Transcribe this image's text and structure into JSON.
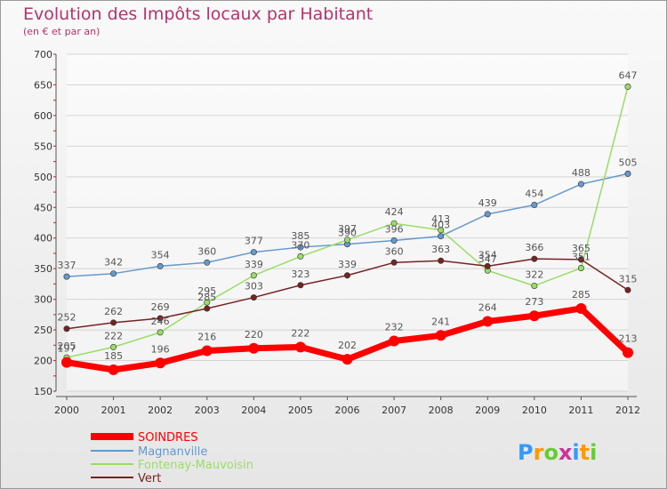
{
  "chart_data": {
    "type": "line",
    "title": "Evolution des Impôts locaux par Habitant",
    "subtitle": "(en € et par an)",
    "x": [
      "2000",
      "2001",
      "2002",
      "2003",
      "2004",
      "2005",
      "2006",
      "2007",
      "2008",
      "2009",
      "2010",
      "2011",
      "2012"
    ],
    "ylim": [
      150,
      700
    ],
    "yticks": [
      150,
      200,
      250,
      300,
      350,
      400,
      450,
      500,
      550,
      600,
      650,
      700
    ],
    "grid": "horizontal",
    "legend_position": "bottom-left",
    "series": [
      {
        "name": "SOINDRES",
        "color": "#ff0000",
        "values": [
          197,
          185,
          196,
          216,
          220,
          222,
          202,
          232,
          241,
          264,
          273,
          285,
          213
        ]
      },
      {
        "name": "Magnanville",
        "color": "#6699cc",
        "values": [
          337,
          342,
          354,
          360,
          377,
          385,
          390,
          396,
          403,
          439,
          454,
          488,
          505
        ]
      },
      {
        "name": "Fontenay-Mauvoisin",
        "color": "#99dd66",
        "values": [
          205,
          222,
          246,
          295,
          339,
          370,
          397,
          424,
          413,
          347,
          322,
          351,
          647
        ]
      },
      {
        "name": "Vert",
        "color": "#772222",
        "values": [
          252,
          262,
          269,
          285,
          303,
          323,
          339,
          360,
          363,
          354,
          366,
          365,
          315
        ]
      }
    ]
  },
  "logo": {
    "text": "Proxiti",
    "letter_colors": [
      "#3399ff",
      "#ff9900",
      "#66cc33",
      "#cc3399",
      "#3399ff",
      "#ff9900",
      "#66cc33"
    ]
  }
}
